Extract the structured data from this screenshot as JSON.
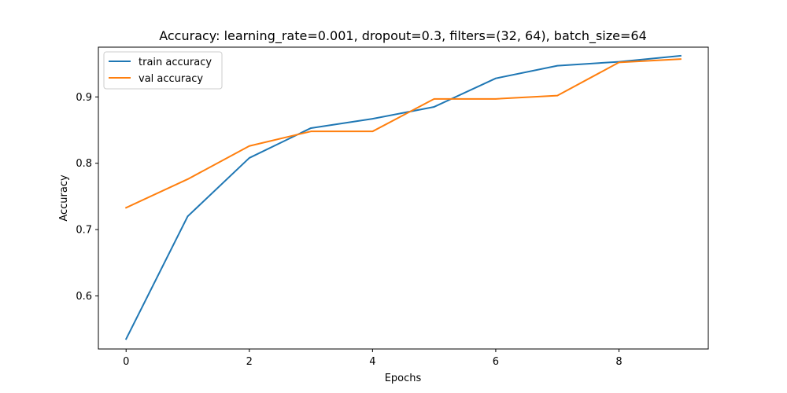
{
  "chart_data": {
    "type": "line",
    "title": "Accuracy: learning_rate=0.001, dropout=0.3, filters=(32, 64), batch_size=64",
    "xlabel": "Epochs",
    "ylabel": "Accuracy",
    "x": [
      0,
      1,
      2,
      3,
      4,
      5,
      6,
      7,
      8,
      9
    ],
    "xlim": [
      -0.45,
      9.45
    ],
    "ylim": [
      0.52,
      0.975
    ],
    "xticks": [
      0,
      2,
      4,
      6,
      8
    ],
    "yticks": [
      0.6,
      0.7,
      0.8,
      0.9
    ],
    "xtick_labels": [
      "0",
      "2",
      "4",
      "6",
      "8"
    ],
    "ytick_labels": [
      "0.6",
      "0.7",
      "0.8",
      "0.9"
    ],
    "grid": false,
    "legend_position": "top-left",
    "series": [
      {
        "name": "train accuracy",
        "color": "#1f77b4",
        "values": [
          0.535,
          0.72,
          0.808,
          0.853,
          0.867,
          0.885,
          0.928,
          0.947,
          0.953,
          0.962
        ]
      },
      {
        "name": "val accuracy",
        "color": "#ff7f0e",
        "values": [
          0.733,
          0.776,
          0.826,
          0.848,
          0.848,
          0.897,
          0.897,
          0.902,
          0.952,
          0.957
        ]
      }
    ]
  }
}
